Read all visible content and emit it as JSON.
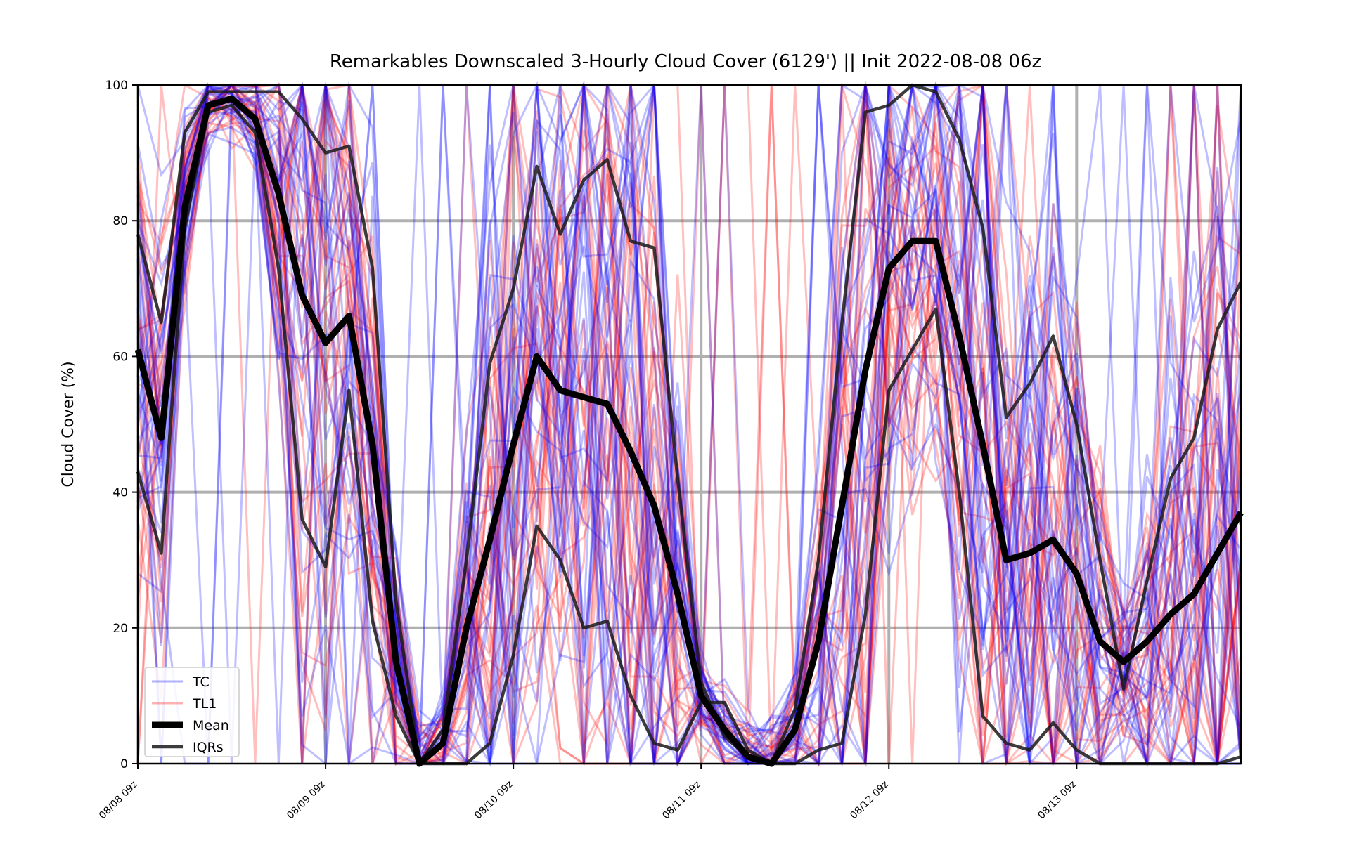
{
  "chart_data": {
    "type": "line",
    "title": "Remarkables Downscaled 3-Hourly Cloud Cover (6129') || Init 2022-08-08 06z",
    "xlabel": "",
    "ylabel": "Cloud Cover (%)",
    "ylim": [
      0,
      100
    ],
    "yticks": [
      "0",
      "20",
      "40",
      "60",
      "80",
      "100"
    ],
    "y_tick_values": [
      0,
      20,
      40,
      60,
      80,
      100
    ],
    "xticks": [
      "08/08 09z",
      "08/09 09z",
      "08/10 09z",
      "08/11 09z",
      "08/12 09z",
      "08/13 09z"
    ],
    "x_hours": [
      0,
      3,
      6,
      9,
      12,
      15,
      18,
      21,
      24,
      27,
      30,
      33,
      36,
      39,
      42,
      45,
      48,
      51,
      54,
      57,
      60,
      63,
      66,
      69,
      72,
      75,
      78,
      81,
      84,
      87,
      90,
      93,
      96,
      99,
      102,
      105,
      108,
      111,
      114,
      117,
      120,
      123,
      126,
      129,
      132,
      135,
      138,
      141
    ],
    "grid": true,
    "legend_position": "lower-left",
    "colors": {
      "tc": "#0000ff",
      "tl1": "#ff0000",
      "mean": "#000000",
      "iqr": "#1a1a1a",
      "grid": "#b0b0b0"
    },
    "series": [
      {
        "name": "Mean",
        "values": [
          61,
          48,
          82,
          97,
          98,
          95,
          84,
          69,
          62,
          66,
          47,
          15,
          0,
          3,
          20,
          33,
          47,
          60,
          55,
          54,
          53,
          46,
          38,
          25,
          10,
          5,
          1,
          0,
          5,
          18,
          38,
          58,
          73,
          77,
          77,
          63,
          47,
          30,
          31,
          33,
          28,
          18,
          15,
          18,
          22,
          25,
          31,
          37
        ]
      },
      {
        "name": "IQR upper",
        "values": [
          78,
          65,
          93,
          99,
          99,
          99,
          99,
          95,
          90,
          91,
          73,
          24,
          0,
          5,
          30,
          59,
          70,
          88,
          78,
          86,
          89,
          77,
          76,
          42,
          12,
          4,
          1,
          0,
          8,
          30,
          65,
          96,
          97,
          100,
          99,
          92,
          79,
          51,
          56,
          63,
          50,
          30,
          11,
          27,
          42,
          48,
          64,
          71
        ]
      },
      {
        "name": "IQR lower",
        "values": [
          43,
          31,
          79,
          96,
          97,
          93,
          73,
          36,
          29,
          55,
          21,
          7,
          0,
          0,
          0,
          3,
          16,
          35,
          30,
          20,
          21,
          10,
          3,
          2,
          9,
          9,
          2,
          0,
          0,
          2,
          3,
          22,
          55,
          61,
          67,
          40,
          7,
          3,
          2,
          6,
          2,
          0,
          0,
          0,
          0,
          0,
          0,
          1
        ]
      }
    ],
    "legend": [
      {
        "label": "TC"
      },
      {
        "label": "TL1"
      },
      {
        "label": "Mean"
      },
      {
        "label": "IQRs"
      }
    ],
    "ensemble_counts": {
      "tc": 30,
      "tl1": 30
    }
  }
}
